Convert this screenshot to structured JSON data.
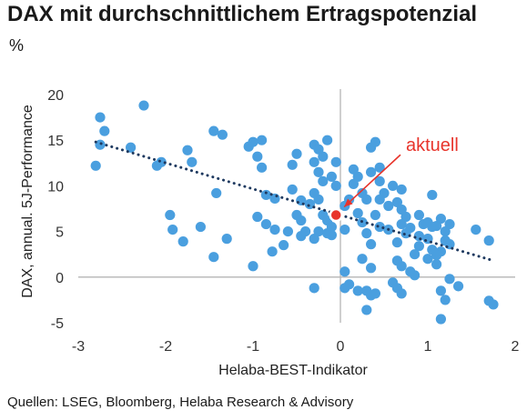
{
  "title": "DAX mit durchschnittlichem Ertragspotenzial",
  "unit": "%",
  "source": "Quellen: LSEG, Bloomberg, Helaba Research & Advisory",
  "colors": {
    "point": "#4a9fdf",
    "current": "#e8342b",
    "trend": "#1f3a60",
    "axis": "#b5b5b5"
  },
  "chart_data": {
    "type": "scatter",
    "xlabel": "Helaba-BEST-Indikator",
    "ylabel": "DAX, annual. 5J-Performance",
    "xlim": [
      -3,
      2
    ],
    "ylim": [
      -5,
      20
    ],
    "xticks": [
      "-3",
      "-2",
      "-1",
      "0",
      "1",
      "2"
    ],
    "yticks": [
      "-5",
      "0",
      "5",
      "10",
      "15",
      "20"
    ],
    "grid": false,
    "trendline": {
      "x": [
        -2.8,
        1.75
      ],
      "y": [
        14.8,
        1.8
      ]
    },
    "current": {
      "x": -0.05,
      "y": 6.8
    },
    "annotation": {
      "text": "aktuell",
      "x": 0.75,
      "y": 13.8
    },
    "points": [
      [
        -2.75,
        17.5
      ],
      [
        -2.7,
        16.0
      ],
      [
        -2.75,
        14.5
      ],
      [
        -2.8,
        12.2
      ],
      [
        -2.4,
        14.2
      ],
      [
        -2.25,
        18.8
      ],
      [
        -2.1,
        12.2
      ],
      [
        -2.05,
        12.6
      ],
      [
        -1.95,
        6.8
      ],
      [
        -1.92,
        5.2
      ],
      [
        -1.75,
        13.9
      ],
      [
        -1.7,
        12.6
      ],
      [
        -1.6,
        5.5
      ],
      [
        -1.8,
        3.9
      ],
      [
        -1.45,
        16.0
      ],
      [
        -1.35,
        15.6
      ],
      [
        -1.42,
        9.2
      ],
      [
        -1.45,
        2.2
      ],
      [
        -1.3,
        4.2
      ],
      [
        -1.05,
        14.3
      ],
      [
        -1.0,
        14.8
      ],
      [
        -0.9,
        15.0
      ],
      [
        -0.95,
        13.2
      ],
      [
        -0.9,
        12.0
      ],
      [
        -0.85,
        9.0
      ],
      [
        -0.75,
        8.6
      ],
      [
        -1.0,
        1.2
      ],
      [
        -0.95,
        6.6
      ],
      [
        -0.85,
        5.8
      ],
      [
        -0.75,
        5.2
      ],
      [
        -0.78,
        2.8
      ],
      [
        -0.65,
        3.5
      ],
      [
        -0.6,
        5.0
      ],
      [
        -0.55,
        12.3
      ],
      [
        -0.5,
        13.5
      ],
      [
        -0.55,
        9.6
      ],
      [
        -0.45,
        8.4
      ],
      [
        -0.5,
        6.8
      ],
      [
        -0.45,
        6.2
      ],
      [
        -0.45,
        4.5
      ],
      [
        -0.4,
        5.0
      ],
      [
        -0.35,
        8.0
      ],
      [
        -0.3,
        14.5
      ],
      [
        -0.25,
        14.0
      ],
      [
        -0.2,
        13.2
      ],
      [
        -0.3,
        12.6
      ],
      [
        -0.25,
        11.5
      ],
      [
        -0.2,
        10.5
      ],
      [
        -0.3,
        9.2
      ],
      [
        -0.25,
        8.5
      ],
      [
        -0.2,
        6.8
      ],
      [
        -0.15,
        6.2
      ],
      [
        -0.25,
        5.0
      ],
      [
        -0.15,
        4.8
      ],
      [
        -0.1,
        5.5
      ],
      [
        -0.15,
        15.0
      ],
      [
        -0.05,
        12.6
      ],
      [
        -0.1,
        11.0
      ],
      [
        -0.05,
        10.0
      ],
      [
        -0.3,
        4.2
      ],
      [
        -0.1,
        4.6
      ],
      [
        0.05,
        5.2
      ],
      [
        0.05,
        7.8
      ],
      [
        0.1,
        8.5
      ],
      [
        -0.3,
        -1.2
      ],
      [
        0.05,
        0.6
      ],
      [
        0.1,
        -0.8
      ],
      [
        0.05,
        -1.2
      ],
      [
        0.15,
        10.2
      ],
      [
        0.2,
        11.0
      ],
      [
        0.15,
        11.8
      ],
      [
        0.25,
        9.2
      ],
      [
        0.3,
        8.5
      ],
      [
        0.2,
        7.0
      ],
      [
        0.25,
        6.0
      ],
      [
        0.3,
        4.8
      ],
      [
        0.25,
        2.0
      ],
      [
        0.2,
        -1.5
      ],
      [
        0.35,
        14.2
      ],
      [
        0.4,
        14.8
      ],
      [
        0.45,
        12.0
      ],
      [
        0.35,
        11.5
      ],
      [
        0.45,
        10.5
      ],
      [
        0.5,
        9.2
      ],
      [
        0.45,
        8.5
      ],
      [
        0.55,
        7.8
      ],
      [
        0.4,
        6.8
      ],
      [
        0.45,
        5.5
      ],
      [
        0.55,
        5.2
      ],
      [
        0.35,
        3.6
      ],
      [
        0.3,
        -1.5
      ],
      [
        0.35,
        -2.0
      ],
      [
        0.4,
        -1.8
      ],
      [
        0.3,
        -3.6
      ],
      [
        0.35,
        1.0
      ],
      [
        0.6,
        10.0
      ],
      [
        0.7,
        9.6
      ],
      [
        0.65,
        8.2
      ],
      [
        0.7,
        7.4
      ],
      [
        0.75,
        6.6
      ],
      [
        0.7,
        5.8
      ],
      [
        0.8,
        5.4
      ],
      [
        0.75,
        4.8
      ],
      [
        0.65,
        3.8
      ],
      [
        0.65,
        1.8
      ],
      [
        0.7,
        1.2
      ],
      [
        0.6,
        -0.6
      ],
      [
        0.65,
        -1.2
      ],
      [
        0.7,
        -1.8
      ],
      [
        0.8,
        0.6
      ],
      [
        0.85,
        2.5
      ],
      [
        0.9,
        3.4
      ],
      [
        0.9,
        4.5
      ],
      [
        0.95,
        5.8
      ],
      [
        0.9,
        6.8
      ],
      [
        1.0,
        6.0
      ],
      [
        1.05,
        5.5
      ],
      [
        1.0,
        4.2
      ],
      [
        1.05,
        3.0
      ],
      [
        1.0,
        2.0
      ],
      [
        1.1,
        5.6
      ],
      [
        1.15,
        6.4
      ],
      [
        1.2,
        5.0
      ],
      [
        1.2,
        4.0
      ],
      [
        1.15,
        2.8
      ],
      [
        1.25,
        5.8
      ],
      [
        1.25,
        3.6
      ],
      [
        1.1,
        1.4
      ],
      [
        1.15,
        -1.5
      ],
      [
        1.2,
        -2.5
      ],
      [
        1.15,
        -4.6
      ],
      [
        1.25,
        -0.2
      ],
      [
        1.35,
        -1.0
      ],
      [
        1.55,
        5.2
      ],
      [
        1.7,
        4.0
      ],
      [
        1.7,
        -2.6
      ],
      [
        1.75,
        -3.0
      ],
      [
        1.05,
        9.0
      ],
      [
        0.85,
        0.2
      ],
      [
        1.1,
        2.4
      ]
    ]
  }
}
